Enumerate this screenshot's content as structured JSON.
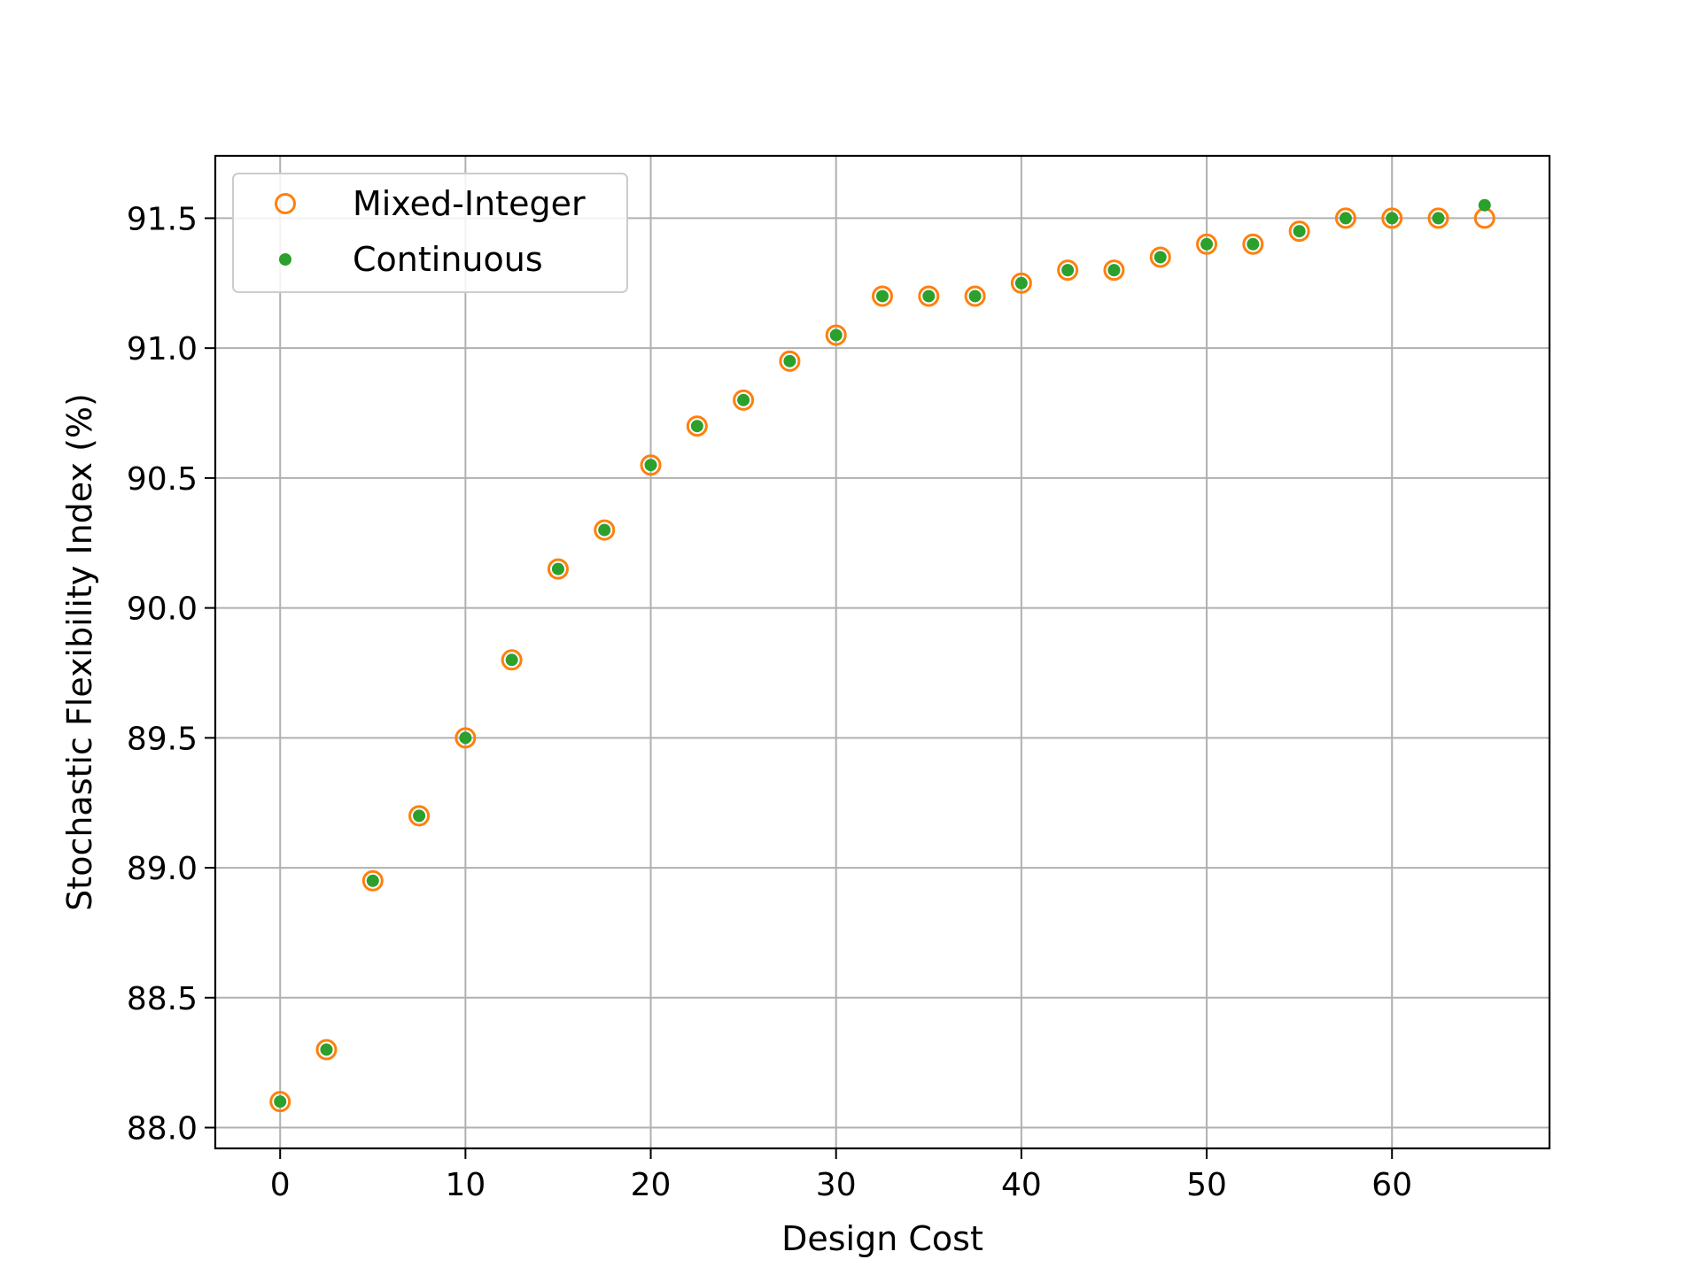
{
  "chart_data": {
    "type": "scatter",
    "title": "",
    "xlabel": "Design Cost",
    "ylabel": "Stochastic Flexibility Index (%)",
    "xlim": [
      -3.5,
      68.5
    ],
    "ylim": [
      87.92,
      91.74
    ],
    "xticks": [
      0,
      10,
      20,
      30,
      40,
      50,
      60
    ],
    "xtick_labels": [
      "0",
      "10",
      "20",
      "30",
      "40",
      "50",
      "60"
    ],
    "yticks": [
      88.0,
      88.5,
      89.0,
      89.5,
      90.0,
      90.5,
      91.0,
      91.5
    ],
    "ytick_labels": [
      "88.0",
      "88.5",
      "89.0",
      "89.5",
      "90.0",
      "90.5",
      "91.0",
      "91.5"
    ],
    "grid": true,
    "legend_position": "upper left",
    "series": [
      {
        "name": "Mixed-Integer",
        "marker": "open-circle",
        "color": "#ff7f0e",
        "x": [
          0,
          2.5,
          5,
          7.5,
          10,
          12.5,
          15,
          17.5,
          20,
          22.5,
          25,
          27.5,
          30,
          32.5,
          35,
          37.5,
          40,
          42.5,
          45,
          47.5,
          50,
          52.5,
          55,
          57.5,
          60,
          62.5,
          65
        ],
        "y": [
          88.1,
          88.3,
          88.95,
          89.2,
          89.5,
          89.8,
          90.15,
          90.3,
          90.55,
          90.7,
          90.8,
          90.95,
          91.05,
          91.2,
          91.2,
          91.2,
          91.25,
          91.3,
          91.3,
          91.35,
          91.4,
          91.4,
          91.45,
          91.5,
          91.5,
          91.5,
          91.5
        ]
      },
      {
        "name": "Continuous",
        "marker": "filled-dot",
        "color": "#2ca02c",
        "x": [
          0,
          2.5,
          5,
          7.5,
          10,
          12.5,
          15,
          17.5,
          20,
          22.5,
          25,
          27.5,
          30,
          32.5,
          35,
          37.5,
          40,
          42.5,
          45,
          47.5,
          50,
          52.5,
          55,
          57.5,
          60,
          62.5,
          65
        ],
        "y": [
          88.1,
          88.3,
          88.95,
          89.2,
          89.5,
          89.8,
          90.15,
          90.3,
          90.55,
          90.7,
          90.8,
          90.95,
          91.05,
          91.2,
          91.2,
          91.2,
          91.25,
          91.3,
          91.3,
          91.35,
          91.4,
          91.4,
          91.45,
          91.5,
          91.5,
          91.5,
          91.55
        ]
      }
    ]
  }
}
